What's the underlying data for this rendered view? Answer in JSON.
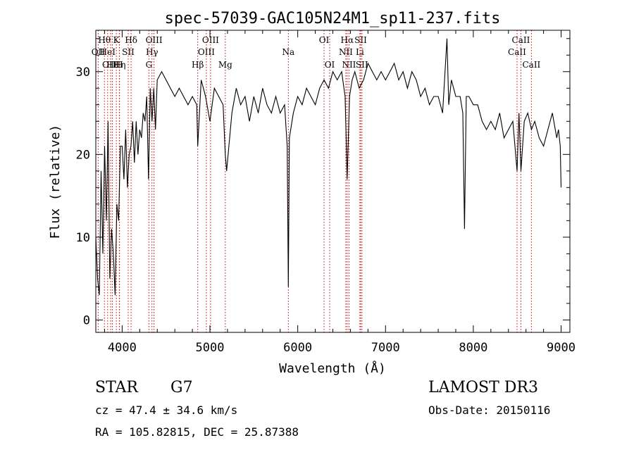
{
  "chart_data": {
    "type": "line",
    "title": "spec-57039-GAC105N24M1_sp11-237.fits",
    "xlabel": "Wavelength (Å)",
    "ylabel": "Flux (relative)",
    "xlim": [
      3700,
      9100
    ],
    "ylim": [
      -1.5,
      35
    ],
    "x_ticks": [
      4000,
      5000,
      6000,
      7000,
      8000,
      9000
    ],
    "y_ticks": [
      0,
      10,
      20,
      30
    ],
    "line_color": "#000000",
    "marker_color": "#cc0000",
    "line_markers": [
      {
        "label": "Hθ",
        "x": 3798,
        "row": 0
      },
      {
        "label": "OII",
        "x": 3727,
        "row": 1
      },
      {
        "label": "OIII",
        "x": 3869,
        "row": 2
      },
      {
        "label": "Hε",
        "x": 3889,
        "row": 2
      },
      {
        "label": "HeI",
        "x": 3835,
        "row": 1
      },
      {
        "label": "K",
        "x": 3934,
        "row": 0
      },
      {
        "label": "Hη",
        "x": 3970,
        "row": 2
      },
      {
        "label": "SII",
        "x": 4069,
        "row": 1
      },
      {
        "label": "H",
        "x": 3968,
        "row": 2
      },
      {
        "label": "Hδ",
        "x": 4102,
        "row": 0
      },
      {
        "label": "OIII",
        "x": 4363,
        "row": 0
      },
      {
        "label": "Hγ",
        "x": 4340,
        "row": 1
      },
      {
        "label": "G",
        "x": 4305,
        "row": 2
      },
      {
        "label": "Hβ",
        "x": 4861,
        "row": 2
      },
      {
        "label": "OIII",
        "x": 5007,
        "row": 0
      },
      {
        "label": "OIII",
        "x": 4959,
        "row": 1
      },
      {
        "label": "Mg",
        "x": 5175,
        "row": 2
      },
      {
        "label": "Na",
        "x": 5893,
        "row": 1
      },
      {
        "label": "OI",
        "x": 6300,
        "row": 0
      },
      {
        "label": "OI",
        "x": 6364,
        "row": 2
      },
      {
        "label": "Hα",
        "x": 6563,
        "row": 0
      },
      {
        "label": "NII",
        "x": 6548,
        "row": 1
      },
      {
        "label": "NII",
        "x": 6584,
        "row": 2
      },
      {
        "label": "SII",
        "x": 6717,
        "row": 0
      },
      {
        "label": "Li",
        "x": 6708,
        "row": 1
      },
      {
        "label": "SII",
        "x": 6731,
        "row": 2
      },
      {
        "label": "CaII",
        "x": 8542,
        "row": 0
      },
      {
        "label": "CaII",
        "x": 8498,
        "row": 1
      },
      {
        "label": "CaII",
        "x": 8662,
        "row": 2
      }
    ],
    "series": [
      {
        "x": [
          3700,
          3720,
          3740,
          3760,
          3780,
          3800,
          3820,
          3840,
          3860,
          3880,
          3900,
          3920,
          3940,
          3960,
          3980,
          4000,
          4020,
          4040,
          4060,
          4080,
          4100,
          4120,
          4140,
          4160,
          4180,
          4200,
          4220,
          4240,
          4260,
          4280,
          4300,
          4320,
          4340,
          4360,
          4380,
          4400,
          4450,
          4500,
          4550,
          4600,
          4650,
          4700,
          4750,
          4800,
          4850,
          4861,
          4900,
          4950,
          5000,
          5050,
          5100,
          5150,
          5175,
          5190,
          5250,
          5300,
          5350,
          5400,
          5450,
          5500,
          5550,
          5600,
          5650,
          5700,
          5750,
          5800,
          5850,
          5880,
          5893,
          5905,
          5950,
          6000,
          6050,
          6100,
          6150,
          6200,
          6250,
          6300,
          6350,
          6400,
          6450,
          6500,
          6540,
          6563,
          6590,
          6620,
          6650,
          6700,
          6750,
          6800,
          6850,
          6900,
          6950,
          7000,
          7050,
          7100,
          7150,
          7200,
          7250,
          7300,
          7350,
          7400,
          7450,
          7500,
          7550,
          7600,
          7650,
          7700,
          7720,
          7750,
          7800,
          7850,
          7880,
          7900,
          7920,
          7950,
          8000,
          8050,
          8100,
          8150,
          8200,
          8250,
          8300,
          8350,
          8400,
          8450,
          8498,
          8520,
          8542,
          8580,
          8620,
          8662,
          8700,
          8750,
          8800,
          8850,
          8900,
          8950,
          8970,
          8990,
          9000
        ],
        "y": [
          10,
          5,
          3,
          18,
          8,
          21,
          12,
          24,
          5,
          11,
          8,
          3,
          14,
          12,
          21,
          21,
          17,
          23,
          16,
          20,
          21,
          24,
          19,
          24,
          20,
          23,
          22,
          25,
          24,
          27,
          17,
          28,
          24,
          28,
          23,
          29,
          30,
          29,
          28,
          27,
          28,
          27,
          26,
          27,
          26,
          21,
          29,
          27,
          24,
          28,
          27,
          26,
          20,
          18,
          25,
          28,
          26,
          27,
          24,
          27,
          25,
          28,
          26,
          25,
          27,
          25,
          26,
          21,
          4,
          22,
          25,
          27,
          26,
          28,
          27,
          26,
          28,
          29,
          28,
          30,
          29,
          30,
          27,
          17,
          27,
          29,
          30,
          28,
          29,
          31,
          30,
          29,
          30,
          29,
          30,
          31,
          29,
          30,
          28,
          30,
          29,
          27,
          28,
          26,
          27,
          27,
          25,
          34,
          26,
          29,
          27,
          27,
          25,
          11,
          27,
          27,
          26,
          26,
          24,
          23,
          24,
          23,
          25,
          22,
          23,
          24,
          18,
          25,
          18,
          24,
          25,
          23,
          24,
          22,
          21,
          23,
          25,
          22,
          23,
          21,
          16
        ]
      }
    ]
  },
  "info": {
    "object_class": "STAR",
    "subclass": "G7",
    "survey": "LAMOST DR3",
    "cz": "cz = 47.4 ± 34.6 km/s",
    "obs_date": "Obs-Date: 20150116",
    "coords": "RA = 105.82815, DEC =  25.87388"
  }
}
